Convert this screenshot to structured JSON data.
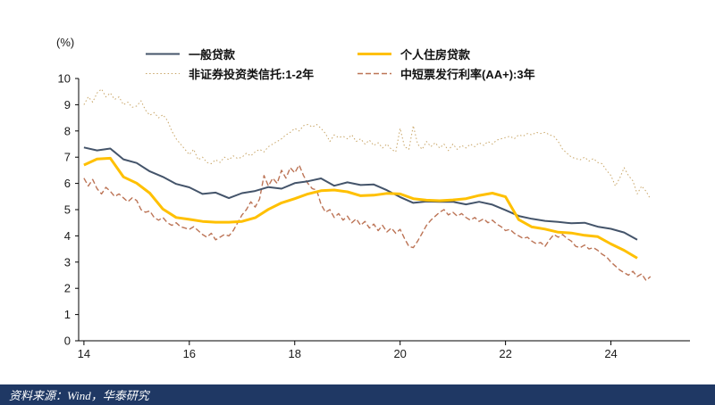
{
  "footer": {
    "source_text": "资料来源：Wind，华泰研究"
  },
  "chart_data": {
    "type": "line",
    "title": "",
    "xlabel": "",
    "ylabel": "(%)",
    "xlim": [
      13.9,
      25.5
    ],
    "ylim": [
      0,
      10
    ],
    "x_ticks": [
      14,
      16,
      18,
      20,
      22,
      24
    ],
    "y_ticks": [
      0,
      1,
      2,
      3,
      4,
      5,
      6,
      7,
      8,
      9,
      10
    ],
    "grid": false,
    "legend_position": "top",
    "series": [
      {
        "name": "一般贷款",
        "color": "#44546A",
        "width": 2,
        "dash": "",
        "z": 3,
        "x_start": 14.0,
        "x_step": 0.25,
        "y": [
          7.37,
          7.26,
          7.33,
          6.92,
          6.78,
          6.46,
          6.25,
          5.98,
          5.85,
          5.6,
          5.65,
          5.44,
          5.63,
          5.71,
          5.86,
          5.8,
          6.01,
          6.08,
          6.19,
          5.91,
          6.04,
          5.94,
          5.96,
          5.74,
          5.48,
          5.26,
          5.31,
          5.3,
          5.3,
          5.2,
          5.3,
          5.19,
          4.98,
          4.76,
          4.65,
          4.57,
          4.53,
          4.48,
          4.5,
          4.35,
          4.27,
          4.13,
          3.85
        ]
      },
      {
        "name": "个人住房贷款",
        "color": "#FFC000",
        "width": 3,
        "dash": "",
        "z": 4,
        "x_start": 14.0,
        "x_step": 0.25,
        "y": [
          6.7,
          6.93,
          6.96,
          6.25,
          6.01,
          5.63,
          5.02,
          4.7,
          4.63,
          4.55,
          4.52,
          4.52,
          4.55,
          4.69,
          5.01,
          5.26,
          5.42,
          5.6,
          5.72,
          5.75,
          5.68,
          5.53,
          5.55,
          5.62,
          5.6,
          5.42,
          5.36,
          5.34,
          5.37,
          5.42,
          5.54,
          5.63,
          5.49,
          4.62,
          4.34,
          4.26,
          4.14,
          4.11,
          4.02,
          3.97,
          3.69,
          3.45,
          3.15
        ]
      },
      {
        "name": "非证券投资类信托:1-2年",
        "color": "#C8A566",
        "width": 1,
        "dash": "1.5 2.6",
        "z": 1,
        "x_start": 14.0,
        "x_step": 0.0833333,
        "y": [
          9.0,
          9.3,
          9.1,
          9.45,
          9.6,
          9.3,
          9.45,
          9.2,
          9.3,
          9.0,
          9.1,
          8.9,
          8.95,
          9.15,
          8.8,
          8.6,
          8.7,
          8.5,
          8.62,
          8.4,
          8.0,
          7.7,
          7.5,
          7.3,
          7.1,
          7.3,
          6.9,
          7.0,
          6.8,
          6.75,
          6.9,
          6.8,
          7.0,
          6.9,
          7.05,
          6.95,
          7.0,
          7.15,
          7.05,
          7.2,
          7.3,
          7.2,
          7.4,
          7.5,
          7.6,
          7.7,
          7.85,
          7.95,
          8.1,
          8.0,
          8.2,
          8.25,
          8.15,
          8.25,
          8.1,
          7.9,
          7.6,
          7.85,
          7.75,
          7.8,
          7.7,
          7.85,
          7.6,
          7.7,
          7.5,
          7.65,
          7.45,
          7.55,
          7.35,
          7.5,
          7.3,
          7.2,
          8.1,
          7.4,
          7.3,
          8.2,
          7.5,
          7.3,
          7.6,
          7.4,
          7.55,
          7.35,
          7.5,
          7.25,
          7.5,
          7.3,
          7.45,
          7.35,
          7.5,
          7.4,
          7.55,
          7.45,
          7.6,
          7.5,
          7.65,
          7.7,
          7.75,
          7.8,
          7.7,
          7.85,
          7.8,
          7.9,
          7.85,
          7.95,
          7.9,
          7.95,
          7.85,
          7.8,
          7.6,
          7.3,
          7.15,
          7.0,
          6.95,
          6.9,
          7.0,
          6.85,
          6.95,
          6.8,
          6.75,
          6.5,
          6.3,
          5.9,
          6.2,
          6.6,
          6.3,
          6.1,
          5.6,
          5.9,
          5.7,
          5.4
        ]
      },
      {
        "name": "中短票发行利率(AA+):3年",
        "color": "#BC7456",
        "width": 1.4,
        "dash": "6 3",
        "z": 2,
        "x_start": 14.0,
        "x_step": 0.0833333,
        "y": [
          6.2,
          5.9,
          6.15,
          5.8,
          5.6,
          5.85,
          5.7,
          5.5,
          5.6,
          5.45,
          5.3,
          5.45,
          5.35,
          5.0,
          4.9,
          4.95,
          4.7,
          4.6,
          4.7,
          4.5,
          4.4,
          4.5,
          4.35,
          4.3,
          4.25,
          4.35,
          4.2,
          4.05,
          3.95,
          4.1,
          3.85,
          3.95,
          4.05,
          4.0,
          4.2,
          4.5,
          4.8,
          5.0,
          5.3,
          5.1,
          5.4,
          6.3,
          5.9,
          6.2,
          6.0,
          6.5,
          6.2,
          6.6,
          6.4,
          6.7,
          6.3,
          6.0,
          5.8,
          5.75,
          5.2,
          4.9,
          5.0,
          4.7,
          4.85,
          4.6,
          4.75,
          4.5,
          4.65,
          4.4,
          4.55,
          4.3,
          4.45,
          4.2,
          4.4,
          4.15,
          4.3,
          4.1,
          4.25,
          3.9,
          3.6,
          3.55,
          3.8,
          4.1,
          4.4,
          4.6,
          4.75,
          4.9,
          5.0,
          4.8,
          4.9,
          4.75,
          4.85,
          4.7,
          4.6,
          4.7,
          4.55,
          4.65,
          4.5,
          4.6,
          4.45,
          4.35,
          4.2,
          4.25,
          4.1,
          4.0,
          3.9,
          3.95,
          3.8,
          3.7,
          3.75,
          3.6,
          3.85,
          4.05,
          3.95,
          4.05,
          3.9,
          3.8,
          3.6,
          3.55,
          3.65,
          3.5,
          3.55,
          3.45,
          3.3,
          3.2,
          3.0,
          2.85,
          2.7,
          2.6,
          2.5,
          2.65,
          2.45,
          2.55,
          2.3,
          2.45
        ]
      }
    ]
  }
}
